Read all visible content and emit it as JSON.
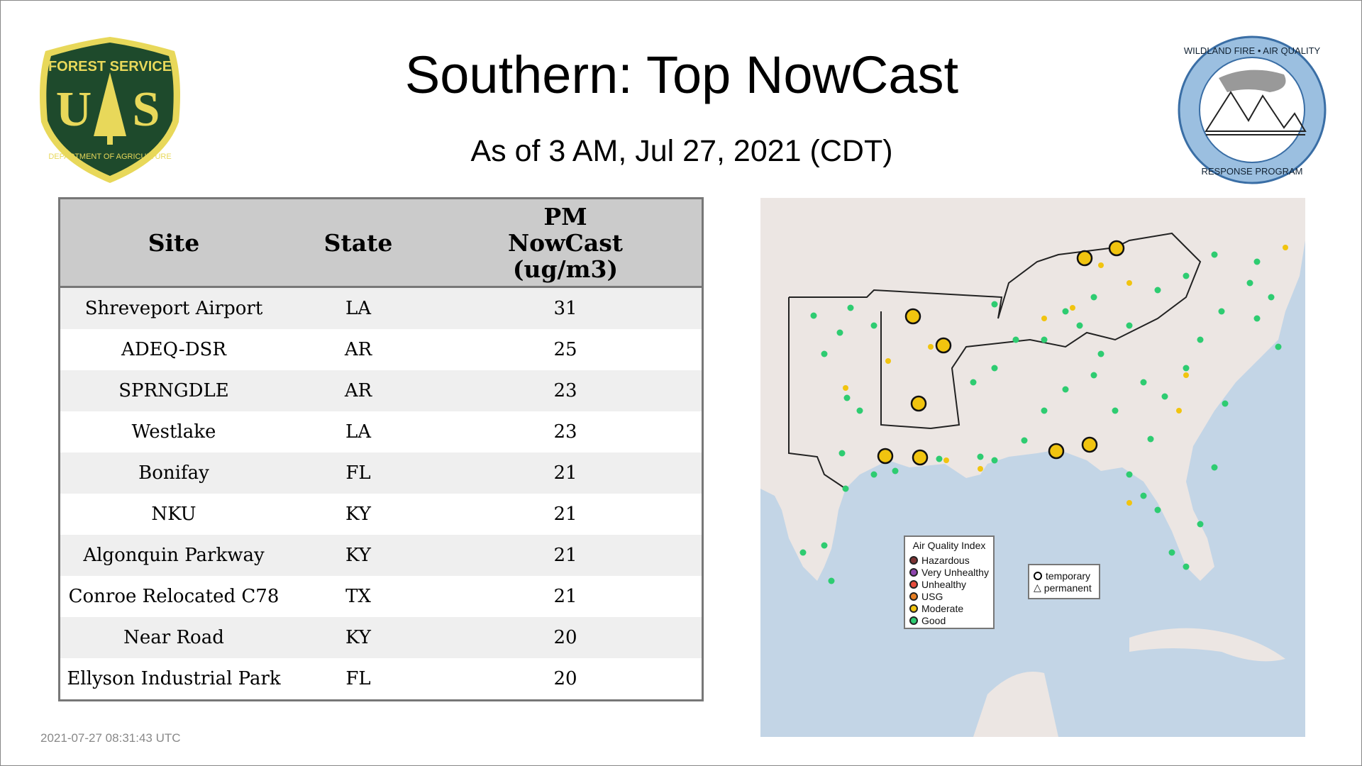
{
  "header": {
    "title": "Southern: Top NowCast",
    "subtitle": "As of  3 AM, Jul 27, 2021 (CDT)"
  },
  "logos": {
    "left": "FOREST SERVICE U S DEPARTMENT OF AGRICULTURE",
    "right": "WILDLAND FIRE • AIR QUALITY RESPONSE PROGRAM"
  },
  "table": {
    "headers": [
      "Site",
      "State",
      "PM NowCast (ug/m3)"
    ],
    "header_pm_lines": [
      "PM",
      "NowCast",
      "(ug/m3)"
    ],
    "rows": [
      {
        "site": "Shreveport Airport",
        "state": "LA",
        "value": "31"
      },
      {
        "site": "ADEQ-DSR",
        "state": "AR",
        "value": "25"
      },
      {
        "site": "SPRNGDLE",
        "state": "AR",
        "value": "23"
      },
      {
        "site": "Westlake",
        "state": "LA",
        "value": "23"
      },
      {
        "site": "Bonifay",
        "state": "FL",
        "value": "21"
      },
      {
        "site": "NKU",
        "state": "KY",
        "value": "21"
      },
      {
        "site": "Algonquin Parkway",
        "state": "KY",
        "value": "21"
      },
      {
        "site": "Conroe Relocated C78",
        "state": "TX",
        "value": "21"
      },
      {
        "site": "Near Road",
        "state": "KY",
        "value": "20"
      },
      {
        "site": "Ellyson Industrial Park",
        "state": "FL",
        "value": "20"
      }
    ]
  },
  "map": {
    "legend": {
      "title": "Air Quality Index",
      "items": [
        {
          "label": "Hazardous",
          "color": "#7e3434"
        },
        {
          "label": "Very Unhealthy",
          "color": "#8e44ad"
        },
        {
          "label": "Unhealthy",
          "color": "#e74c3c"
        },
        {
          "label": "USG",
          "color": "#e67e22"
        },
        {
          "label": "Moderate",
          "color": "#f1c40f"
        },
        {
          "label": "Good",
          "color": "#2ecc71"
        }
      ]
    },
    "shape_legend": {
      "temporary": "temporary",
      "permanent": "permanent"
    },
    "colors": {
      "land": "#ece6e3",
      "water": "#c3d5e6"
    }
  },
  "footer": {
    "timestamp": "2021-07-27 08:31:43 UTC"
  }
}
